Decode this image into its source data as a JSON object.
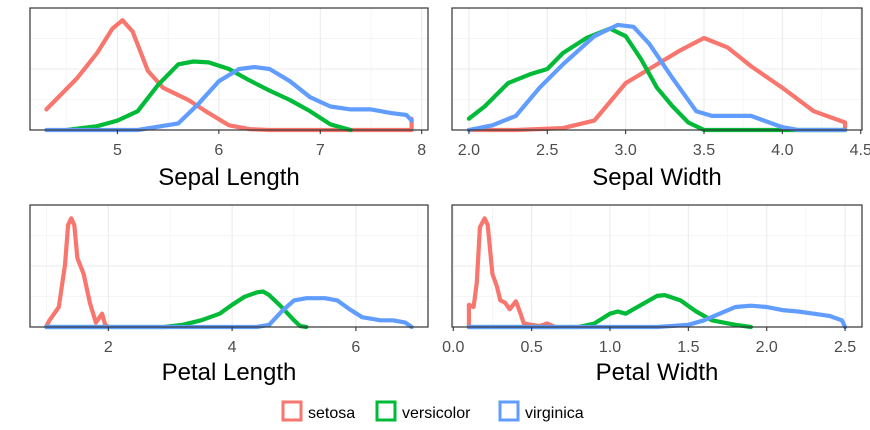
{
  "chart_data": [
    {
      "type": "line",
      "xlabel": "Sepal Length",
      "xlim": [
        4.3,
        7.9
      ],
      "x_ticks": [
        5,
        6,
        7,
        8
      ],
      "ylim": [
        0,
        1.3
      ],
      "series": [
        {
          "name": "setosa",
          "color": "#F8766D",
          "points": [
            [
              4.3,
              0.22
            ],
            [
              4.4,
              0.33
            ],
            [
              4.6,
              0.55
            ],
            [
              4.8,
              0.82
            ],
            [
              4.95,
              1.08
            ],
            [
              5.05,
              1.17
            ],
            [
              5.15,
              1.05
            ],
            [
              5.3,
              0.63
            ],
            [
              5.45,
              0.45
            ],
            [
              5.7,
              0.32
            ],
            [
              5.9,
              0.18
            ],
            [
              6.1,
              0.05
            ],
            [
              6.3,
              0.01
            ],
            [
              6.5,
              0.0
            ],
            [
              7.9,
              0.0
            ],
            [
              7.9,
              0.12
            ]
          ]
        },
        {
          "name": "versicolor",
          "color": "#00BA38",
          "points": [
            [
              4.5,
              0.0
            ],
            [
              4.8,
              0.04
            ],
            [
              5.0,
              0.1
            ],
            [
              5.2,
              0.2
            ],
            [
              5.4,
              0.48
            ],
            [
              5.6,
              0.7
            ],
            [
              5.75,
              0.73
            ],
            [
              5.9,
              0.72
            ],
            [
              6.1,
              0.65
            ],
            [
              6.3,
              0.53
            ],
            [
              6.5,
              0.42
            ],
            [
              6.7,
              0.32
            ],
            [
              6.9,
              0.2
            ],
            [
              7.1,
              0.06
            ],
            [
              7.3,
              0.0
            ]
          ]
        },
        {
          "name": "virginica",
          "color": "#619CFF",
          "points": [
            [
              4.3,
              0.0
            ],
            [
              5.2,
              0.0
            ],
            [
              5.6,
              0.07
            ],
            [
              5.8,
              0.28
            ],
            [
              6.0,
              0.52
            ],
            [
              6.2,
              0.65
            ],
            [
              6.35,
              0.67
            ],
            [
              6.5,
              0.65
            ],
            [
              6.7,
              0.52
            ],
            [
              6.9,
              0.35
            ],
            [
              7.1,
              0.25
            ],
            [
              7.3,
              0.22
            ],
            [
              7.5,
              0.22
            ],
            [
              7.7,
              0.18
            ],
            [
              7.85,
              0.16
            ],
            [
              7.9,
              0.1
            ]
          ]
        }
      ]
    },
    {
      "type": "line",
      "xlabel": "Sepal Width",
      "xlim": [
        2.0,
        4.4
      ],
      "x_ticks": [
        2.0,
        2.5,
        3.0,
        3.5,
        4.0,
        4.5
      ],
      "ylim": [
        0,
        1.3
      ],
      "series": [
        {
          "name": "setosa",
          "color": "#F8766D",
          "points": [
            [
              2.0,
              0.0
            ],
            [
              2.3,
              0.0
            ],
            [
              2.6,
              0.02
            ],
            [
              2.8,
              0.1
            ],
            [
              3.0,
              0.5
            ],
            [
              3.2,
              0.7
            ],
            [
              3.35,
              0.85
            ],
            [
              3.5,
              0.98
            ],
            [
              3.65,
              0.88
            ],
            [
              3.8,
              0.68
            ],
            [
              4.0,
              0.45
            ],
            [
              4.2,
              0.2
            ],
            [
              4.4,
              0.08
            ],
            [
              4.4,
              0.0
            ]
          ]
        },
        {
          "name": "versicolor",
          "color": "#00BA38",
          "points": [
            [
              2.0,
              0.12
            ],
            [
              2.1,
              0.25
            ],
            [
              2.25,
              0.5
            ],
            [
              2.4,
              0.6
            ],
            [
              2.5,
              0.65
            ],
            [
              2.6,
              0.82
            ],
            [
              2.75,
              0.98
            ],
            [
              2.9,
              1.08
            ],
            [
              3.0,
              1.0
            ],
            [
              3.1,
              0.75
            ],
            [
              3.2,
              0.45
            ],
            [
              3.3,
              0.25
            ],
            [
              3.4,
              0.08
            ],
            [
              3.5,
              0.0
            ],
            [
              4.4,
              0.0
            ]
          ]
        },
        {
          "name": "virginica",
          "color": "#619CFF",
          "points": [
            [
              2.0,
              0.0
            ],
            [
              2.15,
              0.05
            ],
            [
              2.3,
              0.15
            ],
            [
              2.45,
              0.45
            ],
            [
              2.6,
              0.7
            ],
            [
              2.8,
              1.0
            ],
            [
              2.95,
              1.12
            ],
            [
              3.05,
              1.1
            ],
            [
              3.15,
              0.92
            ],
            [
              3.3,
              0.55
            ],
            [
              3.45,
              0.2
            ],
            [
              3.55,
              0.15
            ],
            [
              3.7,
              0.15
            ],
            [
              3.8,
              0.15
            ],
            [
              4.0,
              0.03
            ],
            [
              4.1,
              0.0
            ],
            [
              4.4,
              0.0
            ]
          ]
        }
      ]
    },
    {
      "type": "line",
      "xlabel": "Petal Length",
      "xlim": [
        1.0,
        6.9
      ],
      "x_ticks": [
        2,
        4,
        6
      ],
      "ylim": [
        0,
        2.75
      ],
      "series": [
        {
          "name": "setosa",
          "color": "#F8766D",
          "points": [
            [
              1.0,
              0.02
            ],
            [
              1.05,
              0.15
            ],
            [
              1.1,
              0.25
            ],
            [
              1.2,
              0.45
            ],
            [
              1.3,
              1.4
            ],
            [
              1.35,
              2.3
            ],
            [
              1.4,
              2.45
            ],
            [
              1.45,
              2.3
            ],
            [
              1.5,
              1.55
            ],
            [
              1.6,
              1.2
            ],
            [
              1.7,
              0.55
            ],
            [
              1.8,
              0.1
            ],
            [
              1.9,
              0.3
            ],
            [
              1.95,
              0.05
            ],
            [
              2.0,
              0.0
            ]
          ]
        },
        {
          "name": "versicolor",
          "color": "#00BA38",
          "points": [
            [
              1.0,
              0.0
            ],
            [
              2.9,
              0.0
            ],
            [
              3.2,
              0.05
            ],
            [
              3.5,
              0.15
            ],
            [
              3.8,
              0.3
            ],
            [
              4.0,
              0.5
            ],
            [
              4.2,
              0.68
            ],
            [
              4.4,
              0.78
            ],
            [
              4.5,
              0.8
            ],
            [
              4.6,
              0.72
            ],
            [
              4.8,
              0.45
            ],
            [
              5.0,
              0.15
            ],
            [
              5.1,
              0.02
            ],
            [
              5.2,
              0.0
            ]
          ]
        },
        {
          "name": "virginica",
          "color": "#619CFF",
          "points": [
            [
              1.0,
              0.0
            ],
            [
              4.4,
              0.0
            ],
            [
              4.6,
              0.05
            ],
            [
              4.8,
              0.35
            ],
            [
              5.0,
              0.6
            ],
            [
              5.2,
              0.65
            ],
            [
              5.5,
              0.65
            ],
            [
              5.7,
              0.6
            ],
            [
              5.9,
              0.4
            ],
            [
              6.1,
              0.22
            ],
            [
              6.4,
              0.15
            ],
            [
              6.6,
              0.15
            ],
            [
              6.8,
              0.1
            ],
            [
              6.9,
              0.0
            ]
          ]
        }
      ]
    },
    {
      "type": "line",
      "xlabel": "Petal Width",
      "xlim": [
        0.1,
        2.5
      ],
      "x_ticks": [
        0.0,
        0.5,
        1.0,
        1.5,
        2.0,
        2.5
      ],
      "ylim": [
        0,
        2.75
      ],
      "series": [
        {
          "name": "setosa",
          "color": "#F8766D",
          "points": [
            [
              0.1,
              0.0
            ],
            [
              0.1,
              0.5
            ],
            [
              0.13,
              0.45
            ],
            [
              0.15,
              1.0
            ],
            [
              0.17,
              2.25
            ],
            [
              0.2,
              2.45
            ],
            [
              0.22,
              2.3
            ],
            [
              0.25,
              1.2
            ],
            [
              0.28,
              0.9
            ],
            [
              0.3,
              0.6
            ],
            [
              0.33,
              0.55
            ],
            [
              0.36,
              0.4
            ],
            [
              0.4,
              0.58
            ],
            [
              0.43,
              0.3
            ],
            [
              0.45,
              0.08
            ],
            [
              0.5,
              0.05
            ],
            [
              0.55,
              0.02
            ],
            [
              0.6,
              0.08
            ],
            [
              0.65,
              0.0
            ]
          ]
        },
        {
          "name": "versicolor",
          "color": "#00BA38",
          "points": [
            [
              0.1,
              0.0
            ],
            [
              0.8,
              0.0
            ],
            [
              0.9,
              0.08
            ],
            [
              1.0,
              0.3
            ],
            [
              1.05,
              0.35
            ],
            [
              1.1,
              0.3
            ],
            [
              1.2,
              0.5
            ],
            [
              1.3,
              0.7
            ],
            [
              1.35,
              0.72
            ],
            [
              1.45,
              0.6
            ],
            [
              1.55,
              0.35
            ],
            [
              1.65,
              0.15
            ],
            [
              1.8,
              0.05
            ],
            [
              1.9,
              0.0
            ]
          ]
        },
        {
          "name": "virginica",
          "color": "#619CFF",
          "points": [
            [
              0.1,
              0.0
            ],
            [
              1.3,
              0.0
            ],
            [
              1.5,
              0.05
            ],
            [
              1.6,
              0.15
            ],
            [
              1.7,
              0.3
            ],
            [
              1.8,
              0.45
            ],
            [
              1.9,
              0.48
            ],
            [
              2.0,
              0.45
            ],
            [
              2.1,
              0.38
            ],
            [
              2.2,
              0.35
            ],
            [
              2.3,
              0.3
            ],
            [
              2.4,
              0.25
            ],
            [
              2.48,
              0.15
            ],
            [
              2.5,
              0.0
            ]
          ]
        }
      ]
    }
  ],
  "legend": {
    "items": [
      {
        "label": "setosa",
        "color": "#F8766D"
      },
      {
        "label": "versicolor",
        "color": "#00BA38"
      },
      {
        "label": "virginica",
        "color": "#619CFF"
      }
    ]
  }
}
